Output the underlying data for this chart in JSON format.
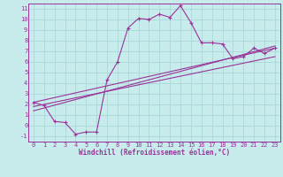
{
  "title": "",
  "xlabel": "Windchill (Refroidissement éolien,°C)",
  "ylabel": "",
  "bg_color": "#c8ecec",
  "line_color": "#993399",
  "grid_color": "#a8d8d8",
  "xlim": [
    -0.5,
    23.5
  ],
  "ylim": [
    -1.5,
    11.5
  ],
  "xticks": [
    0,
    1,
    2,
    3,
    4,
    5,
    6,
    7,
    8,
    9,
    10,
    11,
    12,
    13,
    14,
    15,
    16,
    17,
    18,
    19,
    20,
    21,
    22,
    23
  ],
  "yticks": [
    -1,
    0,
    1,
    2,
    3,
    4,
    5,
    6,
    7,
    8,
    9,
    10,
    11
  ],
  "main_x": [
    0,
    1,
    2,
    3,
    4,
    5,
    6,
    7,
    8,
    9,
    10,
    11,
    12,
    13,
    14,
    15,
    16,
    17,
    18,
    19,
    20,
    21,
    22,
    23
  ],
  "main_y": [
    2.2,
    1.9,
    0.4,
    0.3,
    -0.8,
    -0.6,
    -0.6,
    4.3,
    6.0,
    9.2,
    10.1,
    10.0,
    10.5,
    10.2,
    11.3,
    9.7,
    7.8,
    7.8,
    7.7,
    6.3,
    6.5,
    7.3,
    6.8,
    7.3
  ],
  "line1_x": [
    0,
    23
  ],
  "line1_y": [
    2.2,
    7.3
  ],
  "line2_x": [
    0,
    23
  ],
  "line2_y": [
    1.8,
    6.5
  ],
  "line3_x": [
    0,
    23
  ],
  "line3_y": [
    1.4,
    7.5
  ],
  "xlabel_fontsize": 5.5,
  "tick_fontsize": 5.0,
  "linewidth": 0.8,
  "marker_size": 3.0
}
